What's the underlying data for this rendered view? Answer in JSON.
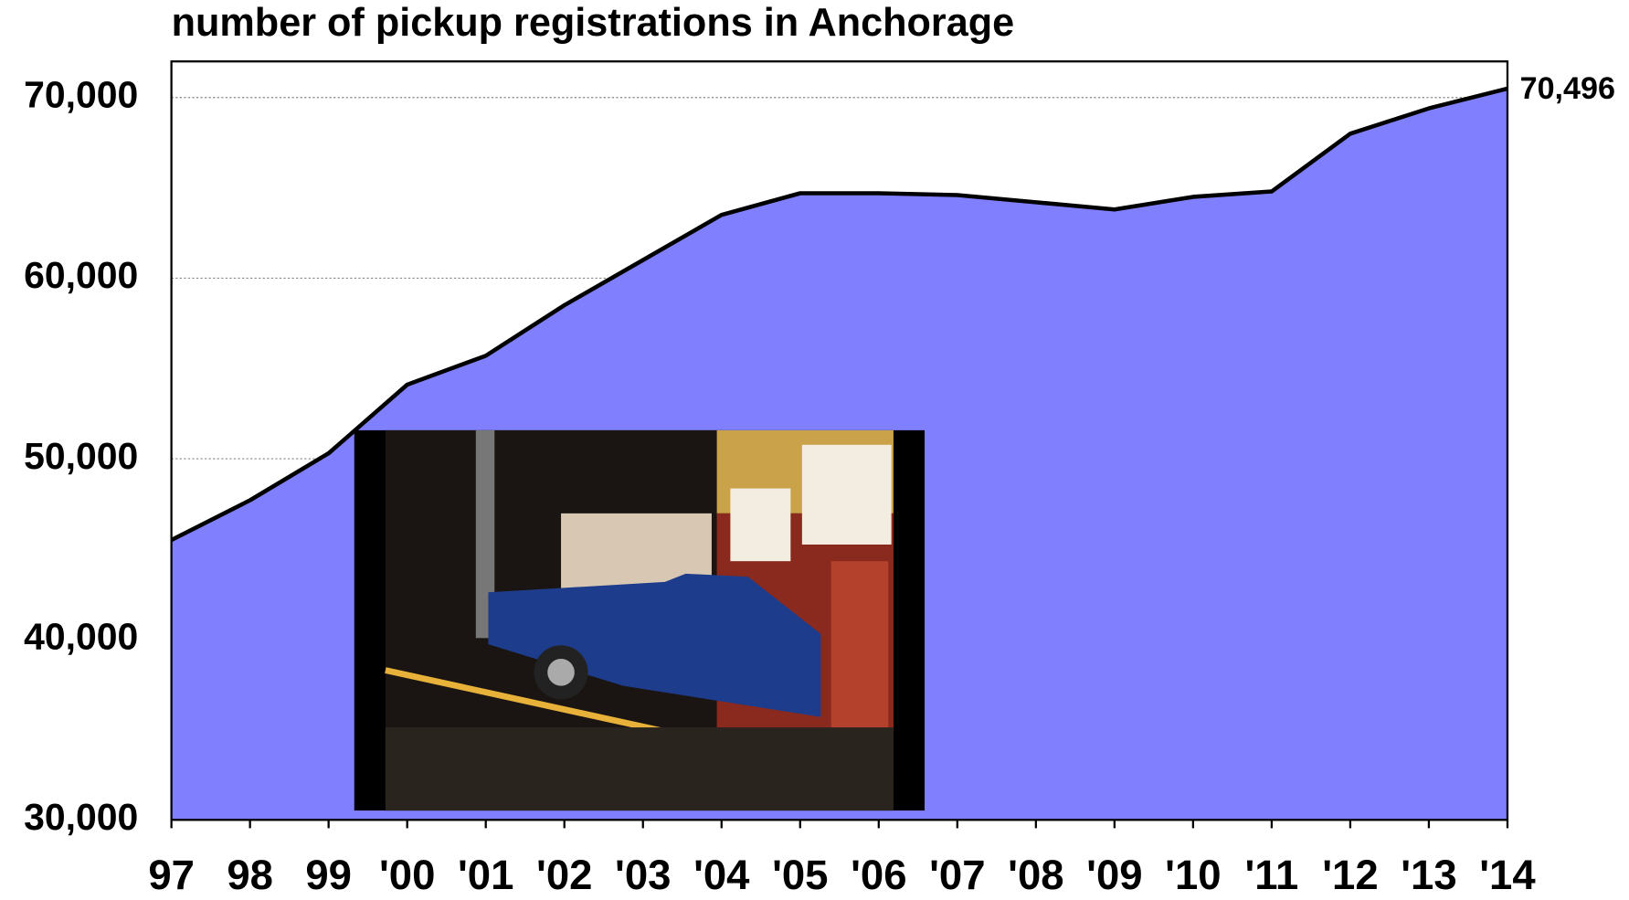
{
  "chart_data": {
    "type": "area",
    "title": "number of pickup registrations in Anchorage",
    "categories": [
      "97",
      "98",
      "99",
      "'00",
      "'01",
      "'02",
      "'03",
      "'04",
      "'05",
      "'06",
      "'07",
      "'08",
      "'09",
      "'10",
      "'11",
      "'12",
      "'13",
      "'14"
    ],
    "values": [
      45500,
      47700,
      50300,
      54100,
      55700,
      58500,
      61000,
      63500,
      64700,
      64700,
      64600,
      64200,
      63800,
      64500,
      64800,
      68000,
      69400,
      70496
    ],
    "value_labels": [
      null,
      null,
      null,
      null,
      null,
      null,
      null,
      null,
      null,
      null,
      null,
      null,
      null,
      null,
      null,
      null,
      null,
      "70,496"
    ],
    "color": "#8080ff",
    "ylim": [
      30000,
      72000
    ],
    "yticks": [
      {
        "value": 30000,
        "label": "30,000"
      },
      {
        "value": 40000,
        "label": "40,000"
      },
      {
        "value": 50000,
        "label": "50,000"
      },
      {
        "value": 60000,
        "label": "60,000"
      },
      {
        "value": 70000,
        "label": "70,000"
      }
    ],
    "grid": true
  }
}
